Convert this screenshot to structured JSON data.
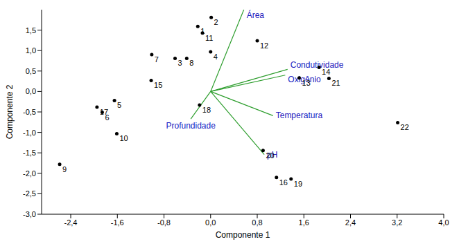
{
  "chart_data": {
    "type": "biplot",
    "xlabel": "Componente 1",
    "ylabel": "Componente 2",
    "xlim": [
      -2.9,
      4.0
    ],
    "xticks": [
      {
        "value": -2.4,
        "label": "-2,4"
      },
      {
        "value": -1.6,
        "label": "-1,6"
      },
      {
        "value": -0.8,
        "label": "-0,8"
      },
      {
        "value": 0.0,
        "label": "0,0"
      },
      {
        "value": 0.8,
        "label": "0,8"
      },
      {
        "value": 1.6,
        "label": "1,6"
      },
      {
        "value": 2.4,
        "label": "2,4"
      },
      {
        "value": 3.2,
        "label": "3,2"
      },
      {
        "value": 4.0,
        "label": "4,0"
      }
    ],
    "ylim": [
      -3.0,
      2.0
    ],
    "yticks": [
      {
        "value": -3.0,
        "label": "-3,0"
      },
      {
        "value": -2.5,
        "label": "-2,5"
      },
      {
        "value": -2.0,
        "label": "-2,0"
      },
      {
        "value": -1.5,
        "label": "-1,5"
      },
      {
        "value": -1.0,
        "label": "-1,0"
      },
      {
        "value": -0.5,
        "label": "-0,5"
      },
      {
        "value": 0.0,
        "label": "0,0"
      },
      {
        "value": 0.5,
        "label": "0,5"
      },
      {
        "value": 1.0,
        "label": "1,0"
      },
      {
        "value": 1.5,
        "label": "1,5"
      }
    ],
    "points": {
      "color": "#000000",
      "labels": [
        "1",
        "2",
        "3",
        "4",
        "5",
        "6",
        "7",
        "8",
        "9",
        "10",
        "11",
        "12",
        "13",
        "14",
        "15",
        "16",
        "17",
        "18",
        "19",
        "20",
        "21",
        "22"
      ],
      "x": [
        -0.22,
        0.01,
        -0.61,
        0.0,
        -1.65,
        -1.86,
        -1.01,
        -0.41,
        -2.59,
        -1.61,
        -0.14,
        0.8,
        1.52,
        1.86,
        -1.02,
        1.13,
        -1.95,
        -0.19,
        1.38,
        0.9,
        2.03,
        3.21
      ],
      "y": [
        1.59,
        1.81,
        0.81,
        0.97,
        -0.22,
        -0.51,
        0.9,
        0.81,
        -1.78,
        -1.03,
        1.43,
        1.24,
        0.33,
        0.59,
        0.27,
        -2.1,
        -0.38,
        -0.33,
        -2.14,
        -1.44,
        0.32,
        -0.76
      ]
    },
    "vectors": {
      "color": "#2e9e2e",
      "labels": [
        "Área",
        "Condutividade",
        "Oxigênio",
        "Temperatura",
        "pH",
        "Profundidade"
      ],
      "x": [
        0.57,
        1.32,
        1.28,
        1.07,
        0.92,
        -0.34
      ],
      "y": [
        2.0,
        0.54,
        0.4,
        -0.59,
        -1.54,
        -0.67
      ]
    }
  }
}
